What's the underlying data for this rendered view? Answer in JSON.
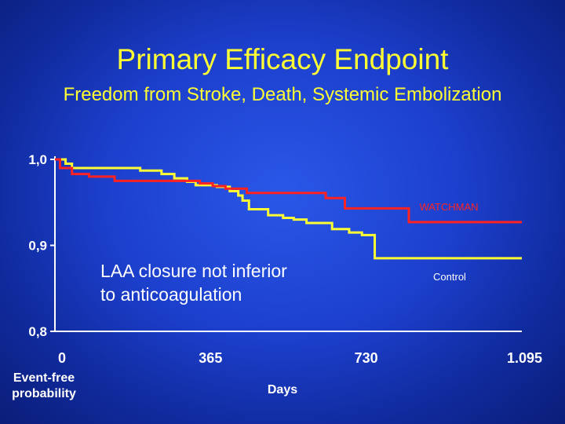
{
  "slide": {
    "title": "Primary Efficacy Endpoint",
    "subtitle": "Freedom from Stroke, Death, Systemic Embolization",
    "annotation_line1": "LAA closure not inferior",
    "annotation_line2": "to anticoagulation"
  },
  "chart_data": {
    "type": "line",
    "title": "",
    "xlabel": "Days",
    "ylabel": "Event-free probability",
    "xlim": [
      0,
      1095
    ],
    "ylim": [
      0.8,
      1.0
    ],
    "x_ticks": [
      0,
      365,
      730,
      1095
    ],
    "x_tick_labels": [
      "0",
      "365",
      "730",
      "1.095"
    ],
    "y_ticks": [
      0.8,
      0.9,
      1.0
    ],
    "y_tick_labels": [
      "0,8",
      "0,9",
      "1,0"
    ],
    "grid": false,
    "series": [
      {
        "name": "WATCHMAN",
        "color": "#ff2222",
        "step": true,
        "x": [
          0,
          12,
          40,
          80,
          140,
          340,
          370,
          400,
          450,
          635,
          680,
          830,
          1095
        ],
        "y": [
          1.0,
          0.99,
          0.983,
          0.98,
          0.975,
          0.972,
          0.969,
          0.966,
          0.961,
          0.955,
          0.943,
          0.927,
          0.927
        ]
      },
      {
        "name": "Control",
        "color": "#ffff33",
        "step": true,
        "x": [
          0,
          25,
          40,
          200,
          250,
          280,
          310,
          330,
          380,
          410,
          430,
          440,
          455,
          500,
          535,
          560,
          590,
          650,
          690,
          720,
          750,
          1095
        ],
        "y": [
          1.0,
          0.995,
          0.99,
          0.987,
          0.983,
          0.978,
          0.974,
          0.97,
          0.968,
          0.963,
          0.958,
          0.952,
          0.942,
          0.935,
          0.932,
          0.93,
          0.926,
          0.919,
          0.915,
          0.912,
          0.885,
          0.885
        ]
      }
    ]
  }
}
